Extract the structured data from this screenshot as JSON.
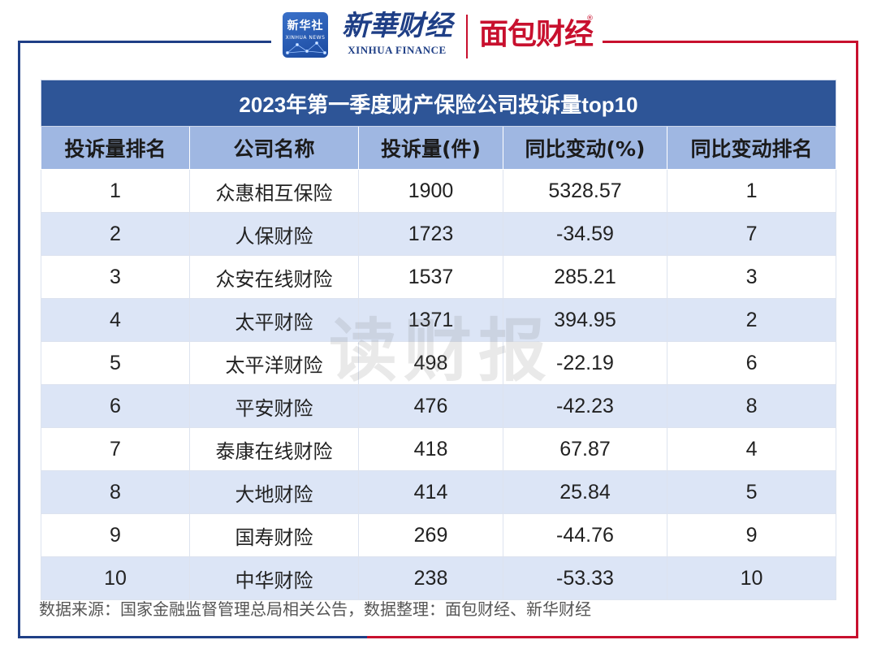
{
  "header": {
    "xinhua_logo_cn": "新华社",
    "xinhua_logo_en": "XINHUA NEWS",
    "brand_cn": "新華财经",
    "brand_en": "XINHUA FINANCE",
    "partner_brand": "面包财经",
    "partner_registered": "®",
    "colors": {
      "blue": "#1f3f86",
      "red": "#c8102e"
    }
  },
  "table": {
    "title": "2023年第一季度财产保险公司投诉量top10",
    "columns": [
      "投诉量排名",
      "公司名称",
      "投诉量(件)",
      "同比变动(%)",
      "同比变动排名"
    ],
    "rows": [
      [
        "1",
        "众惠相互保险",
        "1900",
        "5328.57",
        "1"
      ],
      [
        "2",
        "人保财险",
        "1723",
        "-34.59",
        "7"
      ],
      [
        "3",
        "众安在线财险",
        "1537",
        "285.21",
        "3"
      ],
      [
        "4",
        "太平财险",
        "1371",
        "394.95",
        "2"
      ],
      [
        "5",
        "太平洋财险",
        "498",
        "-22.19",
        "6"
      ],
      [
        "6",
        "平安财险",
        "476",
        "-42.23",
        "8"
      ],
      [
        "7",
        "泰康在线财险",
        "418",
        "67.87",
        "4"
      ],
      [
        "8",
        "大地财险",
        "414",
        "25.84",
        "5"
      ],
      [
        "9",
        "国寿财险",
        "269",
        "-44.76",
        "9"
      ],
      [
        "10",
        "中华财险",
        "238",
        "-53.33",
        "10"
      ]
    ],
    "colors": {
      "title_bg": "#2e5597",
      "header_bg": "#9fb7e2",
      "stripe_bg": "#dce5f6"
    }
  },
  "watermark": "读财报",
  "source": "数据来源：国家金融监督管理总局相关公告，数据整理：面包财经、新华财经"
}
